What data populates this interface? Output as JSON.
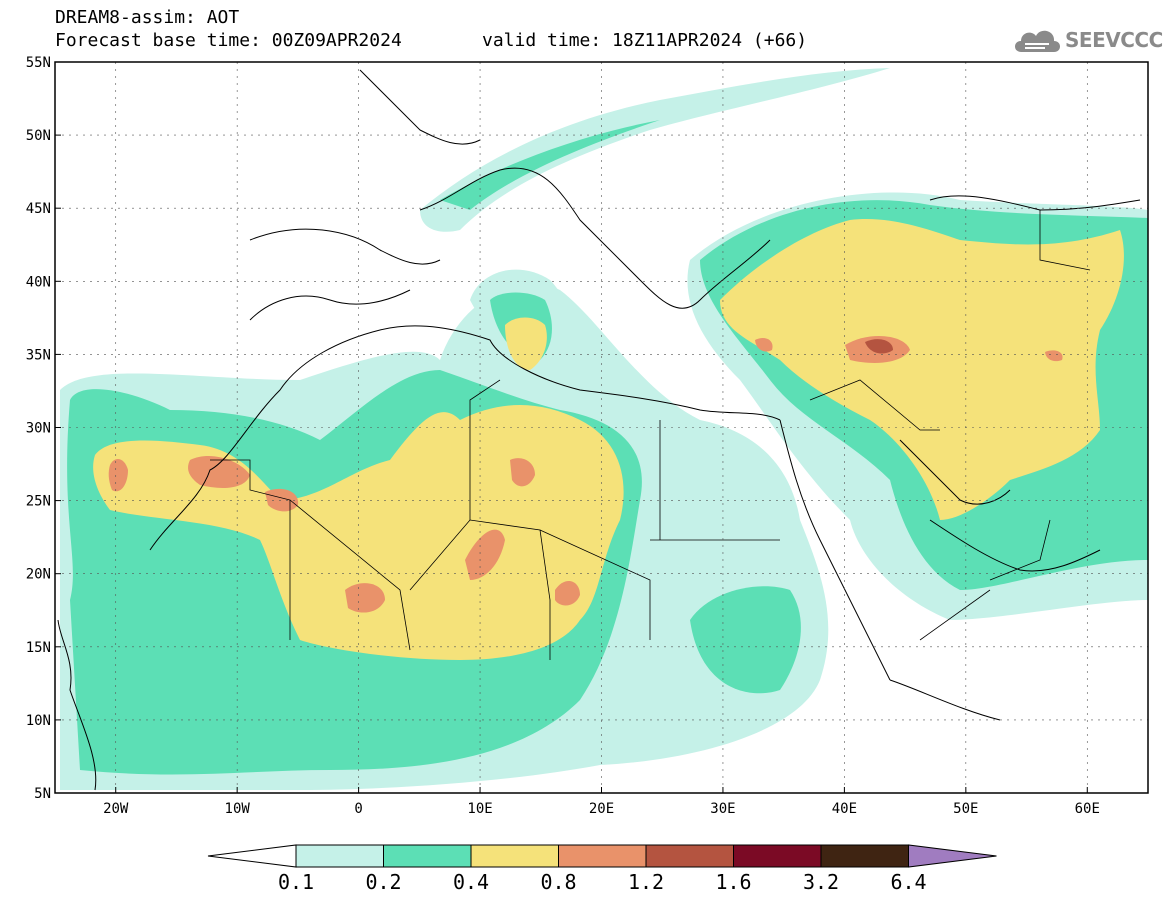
{
  "header": {
    "line1": "DREAM8-assim: AOT",
    "line2_base": "Forecast base time: 00Z09APR2024",
    "line2_valid": "valid time: 18Z11APR2024 (+66)"
  },
  "logo": {
    "text": "SEEVCCC",
    "icon": "cloud-icon",
    "color": "#8a8a8a"
  },
  "map": {
    "lon_range": [
      -25,
      65
    ],
    "lat_range": [
      5,
      55
    ],
    "lon_ticks": [
      "20W",
      "10W",
      "0",
      "10E",
      "20E",
      "30E",
      "40E",
      "50E",
      "60E"
    ],
    "lat_ticks": [
      "55N",
      "50N",
      "45N",
      "40N",
      "35N",
      "30N",
      "25N",
      "20N",
      "15N",
      "10N",
      "5N"
    ],
    "grid": true
  },
  "colorbar": {
    "labels": [
      "0.1",
      "0.2",
      "0.4",
      "0.8",
      "1.2",
      "1.6",
      "3.2",
      "6.4"
    ],
    "colors": [
      "#ffffff",
      "#c5f1e8",
      "#5cdfb5",
      "#f5e27a",
      "#e9926a",
      "#b45440",
      "#7b0a25",
      "#3f2412",
      "#a07cc0"
    ]
  }
}
